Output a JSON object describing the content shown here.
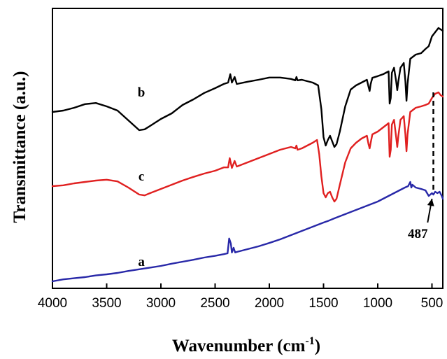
{
  "chart_data": {
    "type": "line",
    "xlabel": "Wavenumber (cm",
    "xlabel_sup": "-1",
    "xlabel_tail": ")",
    "ylabel": "Transmittance (a.u.)",
    "xlim": [
      4000,
      400
    ],
    "x_reversed": true,
    "ylim": [
      0,
      100
    ],
    "y_ticks_shown": false,
    "grid": false,
    "x_ticks": [
      4000,
      3500,
      3000,
      2500,
      2000,
      1500,
      1000,
      500
    ],
    "x_tick_labels": [
      "4000",
      "3500",
      "3000",
      "2500",
      "2000",
      "1500",
      "1000",
      "500"
    ],
    "series": [
      {
        "name": "b",
        "color": "#000000",
        "label_at": [
          3180,
          68.5
        ],
        "points": [
          [
            4000,
            63
          ],
          [
            3900,
            63.5
          ],
          [
            3800,
            64.5
          ],
          [
            3700,
            65.8
          ],
          [
            3600,
            66.2
          ],
          [
            3500,
            65
          ],
          [
            3400,
            63.5
          ],
          [
            3300,
            60
          ],
          [
            3200,
            56.5
          ],
          [
            3150,
            56.8
          ],
          [
            3100,
            58
          ],
          [
            3000,
            60.5
          ],
          [
            2900,
            62.5
          ],
          [
            2800,
            65.5
          ],
          [
            2700,
            67.5
          ],
          [
            2600,
            69.8
          ],
          [
            2500,
            71.5
          ],
          [
            2420,
            73
          ],
          [
            2380,
            73.5
          ],
          [
            2360,
            76.5
          ],
          [
            2345,
            73.5
          ],
          [
            2320,
            75.5
          ],
          [
            2300,
            73
          ],
          [
            2200,
            73.8
          ],
          [
            2100,
            74.5
          ],
          [
            2000,
            75.3
          ],
          [
            1900,
            75.3
          ],
          [
            1800,
            74.8
          ],
          [
            1760,
            74.3
          ],
          [
            1750,
            75.5
          ],
          [
            1740,
            74.3
          ],
          [
            1700,
            74.5
          ],
          [
            1600,
            73.5
          ],
          [
            1550,
            72.5
          ],
          [
            1520,
            64
          ],
          [
            1500,
            54
          ],
          [
            1480,
            51
          ],
          [
            1460,
            53
          ],
          [
            1440,
            54.5
          ],
          [
            1420,
            52.5
          ],
          [
            1400,
            50.5
          ],
          [
            1380,
            51.5
          ],
          [
            1350,
            56
          ],
          [
            1300,
            65
          ],
          [
            1250,
            71
          ],
          [
            1200,
            72.5
          ],
          [
            1150,
            73.5
          ],
          [
            1100,
            74.5
          ],
          [
            1085,
            72
          ],
          [
            1075,
            70.5
          ],
          [
            1065,
            73
          ],
          [
            1050,
            75.2
          ],
          [
            1000,
            75.8
          ],
          [
            950,
            76.5
          ],
          [
            900,
            77.5
          ],
          [
            890,
            66
          ],
          [
            880,
            68
          ],
          [
            870,
            77
          ],
          [
            850,
            78.8
          ],
          [
            830,
            74
          ],
          [
            820,
            70.8
          ],
          [
            810,
            74
          ],
          [
            790,
            78.8
          ],
          [
            760,
            80.5
          ],
          [
            745,
            74
          ],
          [
            735,
            67
          ],
          [
            725,
            73
          ],
          [
            700,
            82
          ],
          [
            650,
            83.5
          ],
          [
            600,
            84
          ],
          [
            560,
            85.5
          ],
          [
            530,
            86.5
          ],
          [
            500,
            90
          ],
          [
            470,
            91.5
          ],
          [
            440,
            93
          ],
          [
            420,
            92.5
          ],
          [
            400,
            92
          ]
        ]
      },
      {
        "name": "c",
        "color": "#e02020",
        "label_at": [
          3180,
          38.5
        ],
        "points": [
          [
            4000,
            36.5
          ],
          [
            3900,
            36.8
          ],
          [
            3800,
            37.5
          ],
          [
            3700,
            38
          ],
          [
            3600,
            38.5
          ],
          [
            3500,
            38.8
          ],
          [
            3400,
            38.2
          ],
          [
            3300,
            36
          ],
          [
            3200,
            33.5
          ],
          [
            3150,
            33.2
          ],
          [
            3100,
            34
          ],
          [
            3000,
            35.5
          ],
          [
            2900,
            37
          ],
          [
            2800,
            38.5
          ],
          [
            2700,
            39.8
          ],
          [
            2600,
            41
          ],
          [
            2500,
            42
          ],
          [
            2420,
            43.2
          ],
          [
            2380,
            43.2
          ],
          [
            2365,
            46.5
          ],
          [
            2345,
            43
          ],
          [
            2320,
            45.5
          ],
          [
            2300,
            43.5
          ],
          [
            2200,
            45
          ],
          [
            2100,
            46.5
          ],
          [
            2000,
            48
          ],
          [
            1900,
            49.5
          ],
          [
            1800,
            50.5
          ],
          [
            1760,
            50
          ],
          [
            1750,
            51
          ],
          [
            1740,
            49.5
          ],
          [
            1700,
            50
          ],
          [
            1600,
            52
          ],
          [
            1560,
            53
          ],
          [
            1540,
            48
          ],
          [
            1520,
            40
          ],
          [
            1500,
            34
          ],
          [
            1480,
            32.5
          ],
          [
            1460,
            34
          ],
          [
            1440,
            34.5
          ],
          [
            1420,
            32.5
          ],
          [
            1400,
            31
          ],
          [
            1380,
            32
          ],
          [
            1350,
            37
          ],
          [
            1300,
            45
          ],
          [
            1250,
            50
          ],
          [
            1200,
            52
          ],
          [
            1150,
            53.5
          ],
          [
            1100,
            54.5
          ],
          [
            1085,
            51.5
          ],
          [
            1075,
            50
          ],
          [
            1065,
            52
          ],
          [
            1050,
            55
          ],
          [
            1000,
            56
          ],
          [
            950,
            57.5
          ],
          [
            900,
            59
          ],
          [
            890,
            47
          ],
          [
            880,
            49.5
          ],
          [
            870,
            58.5
          ],
          [
            850,
            60.2
          ],
          [
            830,
            54
          ],
          [
            820,
            50.5
          ],
          [
            810,
            54.5
          ],
          [
            790,
            60.2
          ],
          [
            760,
            61.5
          ],
          [
            745,
            55
          ],
          [
            735,
            49
          ],
          [
            725,
            55
          ],
          [
            700,
            63
          ],
          [
            650,
            64.5
          ],
          [
            600,
            65
          ],
          [
            560,
            65.5
          ],
          [
            530,
            66
          ],
          [
            500,
            68
          ],
          [
            470,
            69.5
          ],
          [
            440,
            70
          ],
          [
            420,
            69
          ],
          [
            400,
            68.5
          ]
        ]
      },
      {
        "name": "a",
        "color": "#2828a8",
        "label_at": [
          3180,
          8
        ],
        "points": [
          [
            4000,
            2.5
          ],
          [
            3900,
            3.2
          ],
          [
            3800,
            3.6
          ],
          [
            3700,
            4
          ],
          [
            3600,
            4.6
          ],
          [
            3500,
            5
          ],
          [
            3400,
            5.5
          ],
          [
            3300,
            6.2
          ],
          [
            3200,
            6.8
          ],
          [
            3100,
            7.4
          ],
          [
            3000,
            8
          ],
          [
            2900,
            8.8
          ],
          [
            2800,
            9.5
          ],
          [
            2700,
            10.2
          ],
          [
            2600,
            11
          ],
          [
            2500,
            11.6
          ],
          [
            2420,
            12.2
          ],
          [
            2385,
            12.5
          ],
          [
            2370,
            17.8
          ],
          [
            2355,
            16
          ],
          [
            2345,
            12.8
          ],
          [
            2330,
            14.5
          ],
          [
            2315,
            12.8
          ],
          [
            2300,
            13
          ],
          [
            2200,
            14
          ],
          [
            2100,
            15
          ],
          [
            2000,
            16.2
          ],
          [
            1900,
            17.5
          ],
          [
            1800,
            19
          ],
          [
            1700,
            20.5
          ],
          [
            1600,
            22
          ],
          [
            1500,
            23.5
          ],
          [
            1450,
            24.2
          ],
          [
            1400,
            25
          ],
          [
            1300,
            26.5
          ],
          [
            1200,
            28
          ],
          [
            1100,
            29.5
          ],
          [
            1000,
            31
          ],
          [
            900,
            33
          ],
          [
            800,
            35
          ],
          [
            750,
            36
          ],
          [
            720,
            36.5
          ],
          [
            700,
            38
          ],
          [
            690,
            36
          ],
          [
            680,
            37
          ],
          [
            650,
            36
          ],
          [
            600,
            35.5
          ],
          [
            560,
            35
          ],
          [
            530,
            33
          ],
          [
            500,
            34
          ],
          [
            487,
            33.5
          ],
          [
            470,
            34.5
          ],
          [
            450,
            34
          ],
          [
            430,
            34.5
          ],
          [
            410,
            33
          ],
          [
            400,
            32
          ]
        ]
      }
    ],
    "annotations": [
      {
        "text": "487",
        "x": 487,
        "label_x": 540,
        "label_y": 18,
        "arrow_tip_y": 33.5,
        "dashed_top_y": 70
      }
    ]
  }
}
